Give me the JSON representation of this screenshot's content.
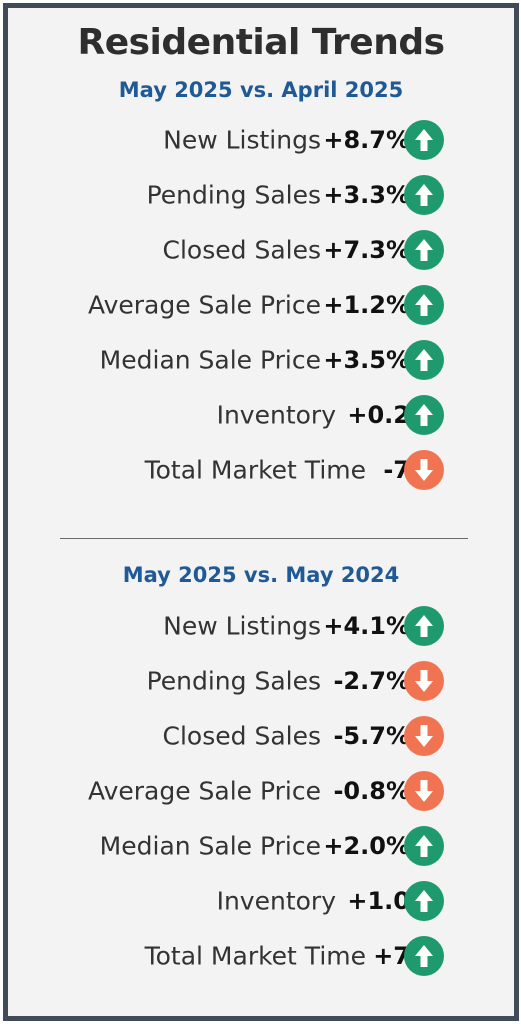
{
  "title": "Residential Trends",
  "colors": {
    "border": "#424a57",
    "background": "#f3f3f3",
    "heading": "#1f5a96",
    "up": "#1f9a6e",
    "down": "#f07452"
  },
  "sections": [
    {
      "heading": "May 2025 vs. April 2025",
      "rows": [
        {
          "label": "New Listings",
          "value": "+8.7%",
          "direction": "up",
          "icon": "arrow-up-icon"
        },
        {
          "label": "Pending Sales",
          "value": "+3.3%",
          "direction": "up",
          "icon": "arrow-up-icon"
        },
        {
          "label": "Closed Sales",
          "value": "+7.3%",
          "direction": "up",
          "icon": "arrow-up-icon"
        },
        {
          "label": "Average Sale Price",
          "value": "+1.2%",
          "direction": "up",
          "icon": "arrow-up-icon"
        },
        {
          "label": "Median Sale Price",
          "value": "+3.5%",
          "direction": "up",
          "icon": "arrow-up-icon"
        },
        {
          "label": "Inventory",
          "value": "+0.2",
          "direction": "up",
          "icon": "arrow-up-icon"
        },
        {
          "label": "Total Market Time",
          "value": "-7",
          "direction": "down",
          "icon": "arrow-down-icon"
        }
      ]
    },
    {
      "heading": "May 2025 vs. May 2024",
      "rows": [
        {
          "label": "New Listings",
          "value": "+4.1%",
          "direction": "up",
          "icon": "arrow-up-icon"
        },
        {
          "label": "Pending Sales",
          "value": "-2.7%",
          "direction": "down",
          "icon": "arrow-down-icon"
        },
        {
          "label": "Closed Sales",
          "value": "-5.7%",
          "direction": "down",
          "icon": "arrow-down-icon"
        },
        {
          "label": "Average Sale Price",
          "value": "-0.8%",
          "direction": "down",
          "icon": "arrow-down-icon"
        },
        {
          "label": "Median Sale Price",
          "value": "+2.0%",
          "direction": "up",
          "icon": "arrow-up-icon"
        },
        {
          "label": "Inventory",
          "value": "+1.0",
          "direction": "up",
          "icon": "arrow-up-icon"
        },
        {
          "label": "Total Market Time",
          "value": "+7",
          "direction": "up",
          "icon": "arrow-up-icon"
        }
      ]
    }
  ]
}
